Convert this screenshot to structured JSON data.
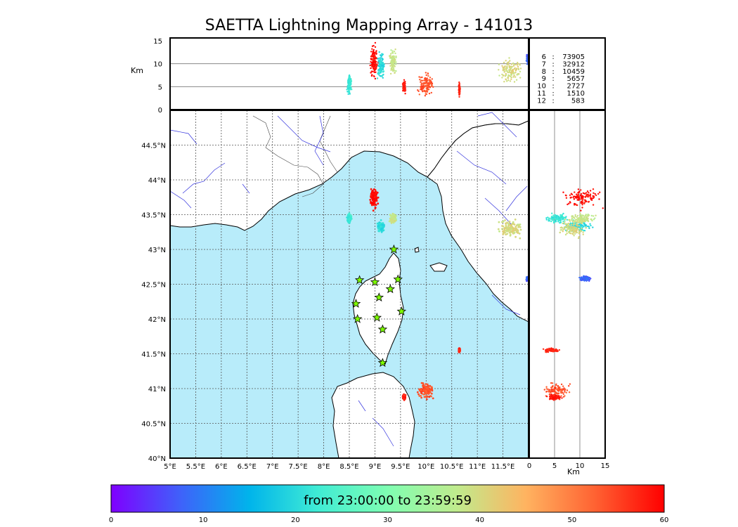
{
  "title": "SAETTA Lightning Mapping Array - 141013",
  "colorbar": {
    "label": "from 23:00:00 to 23:59:59",
    "ticks": [
      "0",
      "10",
      "20",
      "30",
      "40",
      "50",
      "60"
    ],
    "range": [
      0,
      60
    ],
    "colormap": [
      "#7f00ff",
      "#3f61fa",
      "#00b4eb",
      "#40ecd4",
      "#7ffeb2",
      "#c0eb8d",
      "#ffb360",
      "#ff6232",
      "#ff0000"
    ]
  },
  "colors": {
    "sea": "#b8ecfa",
    "land": "#ffffff",
    "river": "#3333dd",
    "station": "#7fff00",
    "grid": "#555555"
  },
  "top_panel": {
    "ylabel": "Km",
    "yticks": [
      "0",
      "5",
      "10",
      "15"
    ],
    "ylim": [
      0,
      15
    ],
    "reference_lines": [
      5,
      10
    ]
  },
  "right_panel": {
    "xlabel": "Km",
    "xticks": [
      "0",
      "5",
      "10",
      "15"
    ],
    "xlim": [
      0,
      15
    ],
    "reference_lines": [
      5,
      10
    ]
  },
  "map": {
    "lon_range": [
      5,
      12
    ],
    "lat_range": [
      40,
      45
    ],
    "xticks": [
      "5°E",
      "5.5°E",
      "6°E",
      "6.5°E",
      "7°E",
      "7.5°E",
      "8°E",
      "8.5°E",
      "9°E",
      "9.5°E",
      "10°E",
      "10.5°E",
      "11°E",
      "11.5°E"
    ],
    "yticks": [
      "40°N",
      "40.5°N",
      "41°N",
      "41.5°N",
      "42°N",
      "42.5°N",
      "43°N",
      "43.5°N",
      "44°N",
      "44.5°N"
    ]
  },
  "station_counts": [
    {
      "station": "6",
      "sep": ":",
      "count": "73905",
      "color": "#000000"
    },
    {
      "station": "7",
      "sep": ":",
      "count": "32912",
      "color": "#ff0000"
    },
    {
      "station": "8",
      "sep": ":",
      "count": "10459",
      "color": "#000000"
    },
    {
      "station": "9",
      "sep": ":",
      "count": "5657",
      "color": "#000000"
    },
    {
      "station": "10",
      "sep": ":",
      "count": "2727",
      "color": "#000000"
    },
    {
      "station": "11",
      "sep": ":",
      "count": "1510",
      "color": "#000000"
    },
    {
      "station": "12",
      "sep": ":",
      "count": "583",
      "color": "#000000"
    }
  ],
  "chart_data": {
    "type": "scatter",
    "x_unit": "longitude (deg E)",
    "y_unit": "latitude (deg N)",
    "z_unit": "altitude (km)",
    "time_range_minutes": [
      0,
      60
    ],
    "stations": [
      {
        "lon": 9.37,
        "lat": 43.0
      },
      {
        "lon": 8.7,
        "lat": 42.56
      },
      {
        "lon": 9.0,
        "lat": 42.53
      },
      {
        "lon": 9.45,
        "lat": 42.57
      },
      {
        "lon": 9.3,
        "lat": 42.43
      },
      {
        "lon": 9.08,
        "lat": 42.31
      },
      {
        "lon": 8.63,
        "lat": 42.22
      },
      {
        "lon": 9.52,
        "lat": 42.11
      },
      {
        "lon": 8.66,
        "lat": 42.0
      },
      {
        "lon": 9.04,
        "lat": 42.02
      },
      {
        "lon": 9.15,
        "lat": 41.85
      },
      {
        "lon": 9.15,
        "lat": 41.37
      }
    ],
    "clusters": [
      {
        "lon": 8.98,
        "lat": 43.73,
        "z": 10.5,
        "t": 59,
        "spread": [
          0.05,
          0.1,
          2.5
        ]
      },
      {
        "lon": 8.5,
        "lat": 43.45,
        "z": 5.5,
        "t": 22,
        "spread": [
          0.03,
          0.05,
          1.5
        ]
      },
      {
        "lon": 9.12,
        "lat": 43.33,
        "z": 9.5,
        "t": 20,
        "spread": [
          0.05,
          0.06,
          2.0
        ]
      },
      {
        "lon": 9.35,
        "lat": 43.45,
        "z": 10.5,
        "t": 38,
        "spread": [
          0.05,
          0.05,
          2.0
        ]
      },
      {
        "lon": 11.65,
        "lat": 43.3,
        "z": 8.5,
        "t": 40,
        "spread": [
          0.18,
          0.09,
          2.0
        ]
      },
      {
        "lon": 10.0,
        "lat": 40.97,
        "z": 5.5,
        "t": 54,
        "spread": [
          0.12,
          0.08,
          1.8
        ]
      },
      {
        "lon": 9.57,
        "lat": 40.88,
        "z": 5.0,
        "t": 58,
        "spread": [
          0.02,
          0.03,
          1.0
        ]
      },
      {
        "lon": 12.0,
        "lat": 42.58,
        "z": 11.0,
        "t": 8,
        "spread": [
          0.03,
          0.03,
          0.8
        ]
      },
      {
        "lon": 10.65,
        "lat": 41.55,
        "z": 4.5,
        "t": 57,
        "spread": [
          0.01,
          0.02,
          1.0
        ]
      }
    ]
  }
}
